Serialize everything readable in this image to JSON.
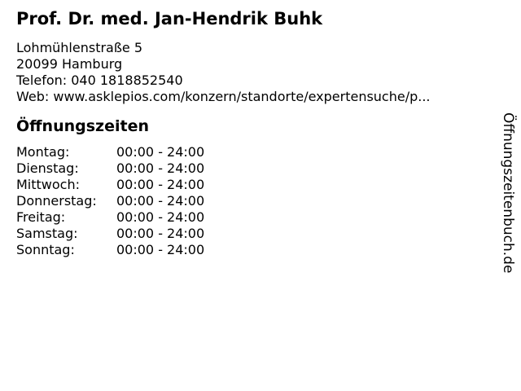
{
  "header": {
    "title": "Prof. Dr. med. Jan-Hendrik Buhk",
    "address_line1": "Lohmühlenstraße 5",
    "address_line2": "20099 Hamburg",
    "phone_line": "Telefon: 040 1818852540",
    "web_line": "Web: www.asklepios.com/konzern/standorte/expertensuche/p..."
  },
  "opening_hours": {
    "heading": "Öffnungszeiten",
    "rows": [
      {
        "day": "Montag:",
        "hours": "00:00 - 24:00"
      },
      {
        "day": "Dienstag:",
        "hours": "00:00 - 24:00"
      },
      {
        "day": "Mittwoch:",
        "hours": "00:00 - 24:00"
      },
      {
        "day": "Donnerstag:",
        "hours": "00:00 - 24:00"
      },
      {
        "day": "Freitag:",
        "hours": "00:00 - 24:00"
      },
      {
        "day": "Samstag:",
        "hours": "00:00 - 24:00"
      },
      {
        "day": "Sonntag:",
        "hours": "00:00 - 24:00"
      }
    ]
  },
  "branding": {
    "watermark": "Öffnungszeitenbuch.de"
  },
  "colors": {
    "text": "#000000",
    "background": "#ffffff"
  }
}
